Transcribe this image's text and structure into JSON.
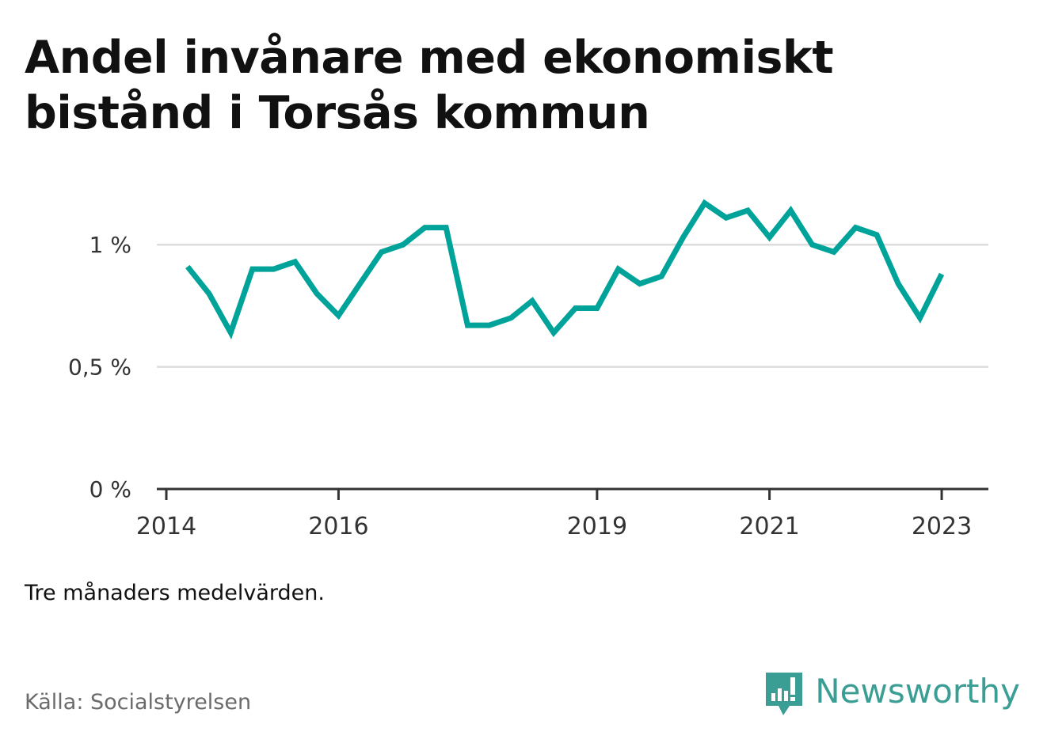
{
  "title": "Andel invånare med ekonomiskt bistånd i Torsås kommun",
  "note": "Tre månaders medelvärden.",
  "source": "Källa: Socialstyrelsen",
  "brand": "Newsworthy",
  "colors": {
    "line": "#00a39a",
    "grid": "#dddddd",
    "axis": "#333333",
    "brand": "#3a9e94"
  },
  "chart_data": {
    "type": "line",
    "title": "Andel invånare med ekonomiskt bistånd i Torsås kommun",
    "xlabel": "",
    "ylabel": "",
    "ylim": [
      0,
      1.25
    ],
    "yticks": [
      {
        "value": 0,
        "label": "0 %"
      },
      {
        "value": 0.5,
        "label": "0,5 %"
      },
      {
        "value": 1,
        "label": "1 %"
      }
    ],
    "xlim": [
      "2014-01-01",
      "2023-06-01"
    ],
    "xticks": [
      {
        "value": "2014-01-01",
        "label": "2014"
      },
      {
        "value": "2016-01-01",
        "label": "2016"
      },
      {
        "value": "2019-01-01",
        "label": "2019"
      },
      {
        "value": "2021-01-01",
        "label": "2021"
      },
      {
        "value": "2023-01-01",
        "label": "2023"
      }
    ],
    "grid": true,
    "legend": "none",
    "series": [
      {
        "values": [
          {
            "x": "2014-04-01",
            "y": 0.91
          },
          {
            "x": "2014-07-01",
            "y": 0.8
          },
          {
            "x": "2014-10-01",
            "y": 0.64
          },
          {
            "x": "2015-01-01",
            "y": 0.9
          },
          {
            "x": "2015-04-01",
            "y": 0.9
          },
          {
            "x": "2015-07-01",
            "y": 0.93
          },
          {
            "x": "2015-10-01",
            "y": 0.8
          },
          {
            "x": "2016-01-01",
            "y": 0.71
          },
          {
            "x": "2016-04-01",
            "y": 0.84
          },
          {
            "x": "2016-07-01",
            "y": 0.97
          },
          {
            "x": "2016-10-01",
            "y": 1.0
          },
          {
            "x": "2017-01-01",
            "y": 1.07
          },
          {
            "x": "2017-04-01",
            "y": 1.07
          },
          {
            "x": "2017-07-01",
            "y": 0.67
          },
          {
            "x": "2017-10-01",
            "y": 0.67
          },
          {
            "x": "2018-01-01",
            "y": 0.7
          },
          {
            "x": "2018-04-01",
            "y": 0.77
          },
          {
            "x": "2018-07-01",
            "y": 0.64
          },
          {
            "x": "2018-10-01",
            "y": 0.74
          },
          {
            "x": "2019-01-01",
            "y": 0.74
          },
          {
            "x": "2019-04-01",
            "y": 0.9
          },
          {
            "x": "2019-07-01",
            "y": 0.84
          },
          {
            "x": "2019-10-01",
            "y": 0.87
          },
          {
            "x": "2020-01-01",
            "y": 1.03
          },
          {
            "x": "2020-04-01",
            "y": 1.17
          },
          {
            "x": "2020-07-01",
            "y": 1.11
          },
          {
            "x": "2020-10-01",
            "y": 1.14
          },
          {
            "x": "2021-01-01",
            "y": 1.03
          },
          {
            "x": "2021-04-01",
            "y": 1.14
          },
          {
            "x": "2021-07-01",
            "y": 1.0
          },
          {
            "x": "2021-10-01",
            "y": 0.97
          },
          {
            "x": "2022-01-01",
            "y": 1.07
          },
          {
            "x": "2022-04-01",
            "y": 1.04
          },
          {
            "x": "2022-07-01",
            "y": 0.84
          },
          {
            "x": "2022-10-01",
            "y": 0.7
          },
          {
            "x": "2023-01-01",
            "y": 0.88
          }
        ]
      }
    ]
  }
}
